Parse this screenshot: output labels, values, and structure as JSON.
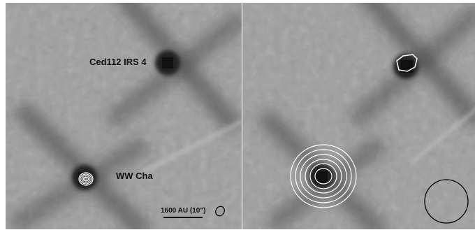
{
  "labels": {
    "source_a": "Ced112 IRS 4",
    "source_b": "WW Cha",
    "scale_bar": "1600 AU (10\")"
  },
  "colors": {
    "background_gray": "#9c9c9c",
    "contour": "#ffffff",
    "beam_outline": "#000000",
    "text": "#111111"
  }
}
